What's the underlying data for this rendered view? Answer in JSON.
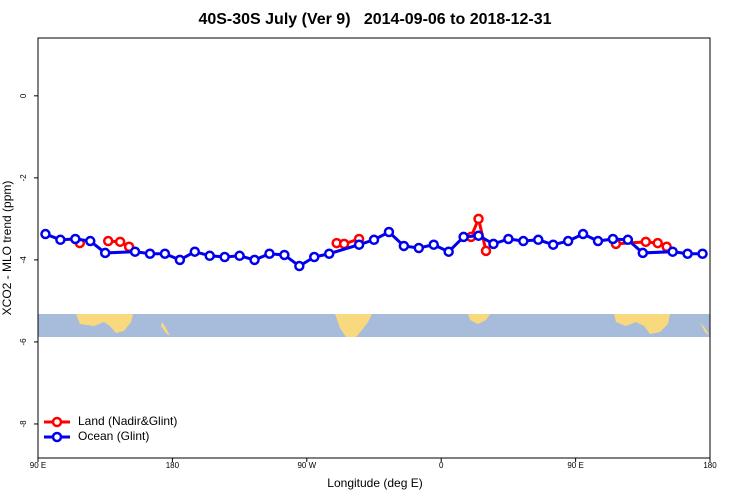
{
  "chart_data": {
    "type": "line",
    "title": "40S-30S July (Ver 9)   2014-09-06 to 2018-12-31",
    "xlabel": "Longitude (deg E)",
    "ylabel": "XCO2 - MLO trend (ppm)",
    "xlim": [
      90,
      540
    ],
    "ylim": [
      -8.83,
      1.41
    ],
    "xticks": [
      {
        "value": 90,
        "label": "90 E"
      },
      {
        "value": 180,
        "label": "180"
      },
      {
        "value": 270,
        "label": "90 W"
      },
      {
        "value": 360,
        "label": "0"
      },
      {
        "value": 450,
        "label": "90 E"
      },
      {
        "value": 540,
        "label": "180"
      }
    ],
    "yticks": [
      0,
      -2,
      -4,
      -6,
      -8
    ],
    "legend": "bottom-left",
    "series": [
      {
        "name": "Land (Nadir&Glint)",
        "color": "#ff0000",
        "x": [
          118,
          null,
          137,
          145,
          151,
          null,
          290,
          295,
          305,
          null,
          380,
          385,
          390,
          null,
          477,
          497,
          505,
          511
        ],
        "values": [
          -3.59,
          null,
          -3.54,
          -3.56,
          -3.68,
          null,
          -3.59,
          -3.61,
          -3.49,
          null,
          -3.44,
          -3.0,
          -3.78,
          null,
          -3.61,
          -3.56,
          -3.59,
          -3.68
        ]
      },
      {
        "name": "Ocean (Glint)",
        "color": "#0000ee",
        "x": [
          95,
          105,
          115,
          125,
          135,
          155,
          165,
          175,
          185,
          195,
          205,
          215,
          225,
          235,
          245,
          255,
          265,
          275,
          285,
          305,
          315,
          325,
          335,
          345,
          355,
          365,
          375,
          385,
          395,
          405,
          415,
          425,
          435,
          445,
          455,
          465,
          475,
          485,
          495,
          515,
          525,
          535
        ],
        "values": [
          -3.37,
          -3.51,
          -3.49,
          -3.54,
          -3.83,
          -3.8,
          -3.85,
          -3.85,
          -4.0,
          -3.8,
          -3.9,
          -3.93,
          -3.9,
          -4.0,
          -3.85,
          -3.88,
          -4.15,
          -3.93,
          -3.85,
          -3.63,
          -3.51,
          -3.32,
          -3.66,
          -3.71,
          -3.63,
          -3.8,
          -3.44,
          -3.41,
          -3.61,
          -3.49,
          -3.54,
          -3.51,
          -3.63,
          -3.54,
          -3.37,
          -3.54,
          -3.49,
          -3.51,
          -3.83,
          -3.8,
          -3.85,
          -3.85
        ]
      }
    ]
  }
}
